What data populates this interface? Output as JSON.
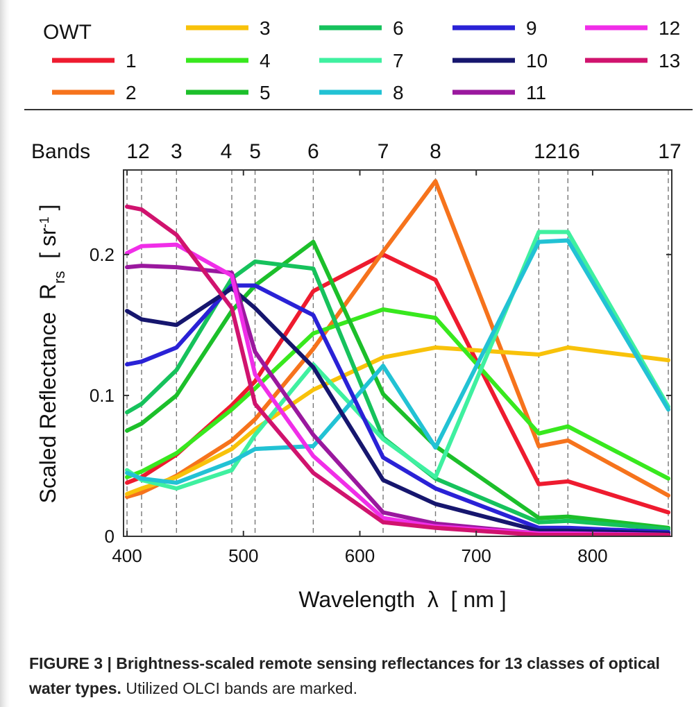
{
  "chart_data": {
    "type": "line",
    "legend_title": "OWT",
    "bands_label": "Bands",
    "bands": [
      {
        "label": "12",
        "nm": 400
      },
      {
        "label": "",
        "nm": 412.5
      },
      {
        "label": "3",
        "nm": 442.5
      },
      {
        "label": "4",
        "nm": 490
      },
      {
        "label": "5",
        "nm": 510
      },
      {
        "label": "6",
        "nm": 560
      },
      {
        "label": "7",
        "nm": 620
      },
      {
        "label": "8",
        "nm": 665
      },
      {
        "label": "1216",
        "nm": 753.75
      },
      {
        "label": "",
        "nm": 778.75
      },
      {
        "label": "17",
        "nm": 865
      }
    ],
    "x": [
      400,
      412.5,
      442.5,
      490,
      510,
      560,
      620,
      665,
      753.75,
      778.75,
      865
    ],
    "xlim": [
      397,
      868
    ],
    "ylim": [
      0,
      0.26
    ],
    "xticks": [
      400,
      500,
      600,
      700,
      800
    ],
    "yticks": [
      0,
      0.1,
      0.2
    ],
    "ytick_labels": [
      "0",
      "0.1",
      "0.2"
    ],
    "xlabel": "Wavelength  λ  [ nm ]",
    "ylabel_main": "Scaled Reflectance  R",
    "ylabel_sub": "rs",
    "ylabel_unit_open": "  [ sr",
    "ylabel_unit_sup": "-1",
    "ylabel_unit_close": " ]",
    "grid": "dashed vertical lines at bands",
    "legend_placement": "top",
    "series": [
      {
        "name": "1",
        "color": "#ee1b2f",
        "values": [
          0.038,
          0.042,
          0.058,
          0.093,
          0.11,
          0.174,
          0.2,
          0.182,
          0.037,
          0.039,
          0.017
        ]
      },
      {
        "name": "2",
        "color": "#f6731c",
        "values": [
          0.028,
          0.031,
          0.043,
          0.068,
          0.083,
          0.133,
          0.202,
          0.252,
          0.064,
          0.068,
          0.029
        ]
      },
      {
        "name": "3",
        "color": "#f8c20a",
        "values": [
          0.03,
          0.034,
          0.042,
          0.062,
          0.076,
          0.104,
          0.127,
          0.134,
          0.129,
          0.134,
          0.125
        ]
      },
      {
        "name": "4",
        "color": "#38e81e",
        "values": [
          0.042,
          0.046,
          0.059,
          0.09,
          0.105,
          0.144,
          0.161,
          0.155,
          0.073,
          0.078,
          0.041
        ]
      },
      {
        "name": "5",
        "color": "#1cbf2a",
        "values": [
          0.075,
          0.08,
          0.1,
          0.16,
          0.178,
          0.209,
          0.101,
          0.064,
          0.013,
          0.014,
          0.006
        ]
      },
      {
        "name": "6",
        "color": "#16c25c",
        "values": [
          0.088,
          0.094,
          0.118,
          0.183,
          0.195,
          0.19,
          0.07,
          0.041,
          0.01,
          0.011,
          0.005
        ]
      },
      {
        "name": "7",
        "color": "#3ff0a0",
        "values": [
          0.047,
          0.04,
          0.034,
          0.047,
          0.072,
          0.122,
          0.069,
          0.042,
          0.216,
          0.216,
          0.092
        ]
      },
      {
        "name": "8",
        "color": "#22c2d4",
        "values": [
          0.045,
          0.041,
          0.038,
          0.053,
          0.062,
          0.064,
          0.121,
          0.063,
          0.209,
          0.21,
          0.09
        ]
      },
      {
        "name": "9",
        "color": "#2a22d6",
        "values": [
          0.122,
          0.124,
          0.134,
          0.178,
          0.178,
          0.157,
          0.056,
          0.034,
          0.006,
          0.006,
          0.003
        ]
      },
      {
        "name": "10",
        "color": "#16166e",
        "values": [
          0.16,
          0.154,
          0.15,
          0.176,
          0.162,
          0.12,
          0.04,
          0.023,
          0.004,
          0.004,
          0.002
        ]
      },
      {
        "name": "11",
        "color": "#9a189e",
        "values": [
          0.191,
          0.192,
          0.191,
          0.187,
          0.131,
          0.072,
          0.017,
          0.009,
          0.002,
          0.002,
          0.001
        ]
      },
      {
        "name": "12",
        "color": "#f02ee8",
        "values": [
          0.201,
          0.206,
          0.207,
          0.185,
          0.115,
          0.057,
          0.013,
          0.007,
          0.002,
          0.002,
          0.001
        ]
      },
      {
        "name": "13",
        "color": "#d0136e",
        "values": [
          0.234,
          0.232,
          0.214,
          0.162,
          0.094,
          0.045,
          0.01,
          0.006,
          0.001,
          0.001,
          0.001
        ]
      }
    ]
  },
  "caption": {
    "figure_label": "FIGURE 3 | Brightness-scaled remote sensing reflectances for 13 classes of optical water types.",
    "rest": " Utilized OLCI bands are marked."
  }
}
